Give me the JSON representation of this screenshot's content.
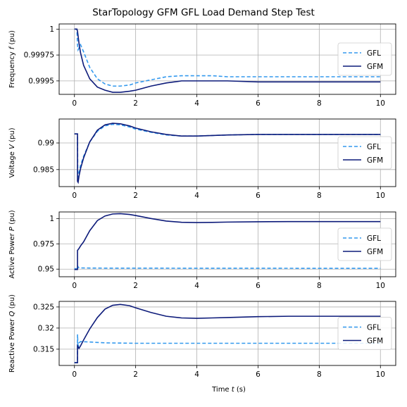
{
  "figure": {
    "title": "StarTopology GFM GFL Load Demand Step Test",
    "xlabel": "Time t (s)"
  },
  "colors": {
    "GFL": "#3399ee",
    "GFM": "#0d1b7a",
    "grid": "#b0b0b0"
  },
  "chart_data": [
    {
      "type": "line",
      "ylabel": "Frequency f (pu)",
      "xlim": [
        -0.5,
        10.5
      ],
      "ylim": [
        0.99937,
        1.00005
      ],
      "xticks": [
        0,
        2,
        4,
        6,
        8,
        10
      ],
      "yticks": [
        0.9995,
        0.99975,
        1
      ],
      "yticklabels": [
        "0.9995",
        "0.99975",
        "1"
      ],
      "grid": true,
      "legend": "right",
      "series": [
        {
          "name": "GFL",
          "style": "dashed",
          "x": [
            0,
            0.08,
            0.1,
            0.12,
            0.2,
            0.3,
            0.5,
            0.75,
            1.0,
            1.25,
            1.5,
            1.8,
            2.0,
            2.5,
            3.0,
            3.5,
            4.0,
            4.5,
            5.0,
            6.0,
            7.0,
            8.0,
            9.0,
            10.0
          ],
          "y": [
            1.0,
            1.0,
            0.99985,
            0.9998,
            0.99985,
            0.99978,
            0.99963,
            0.99952,
            0.99947,
            0.99945,
            0.99945,
            0.99946,
            0.99948,
            0.99951,
            0.99954,
            0.99955,
            0.99955,
            0.99955,
            0.99954,
            0.99954,
            0.99954,
            0.99954,
            0.99954,
            0.99954
          ]
        },
        {
          "name": "GFM",
          "style": "solid",
          "x": [
            0,
            0.08,
            0.1,
            0.15,
            0.2,
            0.3,
            0.5,
            0.75,
            1.0,
            1.25,
            1.5,
            1.8,
            2.0,
            2.5,
            3.0,
            3.5,
            4.0,
            4.5,
            5.0,
            6.0,
            7.0,
            8.0,
            9.0,
            10.0
          ],
          "y": [
            1.0,
            1.0,
            0.99998,
            0.99986,
            0.99977,
            0.99965,
            0.99952,
            0.99944,
            0.99941,
            0.99939,
            0.99939,
            0.9994,
            0.99941,
            0.99945,
            0.99948,
            0.9995,
            0.9995,
            0.9995,
            0.9995,
            0.99949,
            0.99949,
            0.99949,
            0.99949,
            0.99949
          ]
        }
      ]
    },
    {
      "type": "line",
      "ylabel": "Voltage V (pu)",
      "xlim": [
        -0.5,
        10.5
      ],
      "ylim": [
        0.9818,
        0.9945
      ],
      "xticks": [
        0,
        2,
        4,
        6,
        8,
        10
      ],
      "yticks": [
        0.985,
        0.99
      ],
      "yticklabels": [
        "0.985",
        "0.99"
      ],
      "grid": true,
      "legend": "right",
      "series": [
        {
          "name": "GFL",
          "style": "dashed",
          "x": [
            0,
            0.1,
            0.11,
            0.15,
            0.2,
            0.3,
            0.5,
            0.75,
            1.0,
            1.25,
            1.5,
            1.8,
            2.0,
            2.5,
            3.0,
            3.5,
            4.0,
            4.5,
            5.0,
            6.0,
            7.0,
            8.0,
            9.0,
            10.0
          ],
          "y": [
            0.9917,
            0.9917,
            0.9835,
            0.9845,
            0.9858,
            0.9875,
            0.9902,
            0.9922,
            0.9932,
            0.9935,
            0.9934,
            0.993,
            0.9926,
            0.992,
            0.9915,
            0.9913,
            0.9913,
            0.9914,
            0.9915,
            0.9916,
            0.9916,
            0.9916,
            0.9916,
            0.9916
          ]
        },
        {
          "name": "GFM",
          "style": "solid",
          "x": [
            0,
            0.1,
            0.1,
            0.12,
            0.15,
            0.2,
            0.3,
            0.5,
            0.75,
            1.0,
            1.25,
            1.5,
            1.8,
            2.0,
            2.5,
            3.0,
            3.5,
            4.0,
            4.5,
            5.0,
            6.0,
            7.0,
            8.0,
            9.0,
            10.0
          ],
          "y": [
            0.9917,
            0.9917,
            0.9828,
            0.9826,
            0.9838,
            0.9852,
            0.9872,
            0.9902,
            0.9924,
            0.9934,
            0.9937,
            0.9936,
            0.9932,
            0.9928,
            0.9921,
            0.9916,
            0.9913,
            0.9913,
            0.9914,
            0.9915,
            0.9916,
            0.9916,
            0.9916,
            0.9916,
            0.9916
          ]
        }
      ]
    },
    {
      "type": "line",
      "ylabel": "Active Power P (pu)",
      "xlim": [
        -0.5,
        10.5
      ],
      "ylim": [
        0.9425,
        1.0065
      ],
      "xticks": [
        0,
        2,
        4,
        6,
        8,
        10
      ],
      "yticks": [
        0.95,
        0.975,
        1
      ],
      "yticklabels": [
        "0.95",
        "0.975",
        "1"
      ],
      "grid": true,
      "legend": "right",
      "series": [
        {
          "name": "GFL",
          "style": "dashed",
          "x": [
            0,
            0.1,
            0.1,
            0.13,
            0.2,
            0.5,
            1.0,
            2.0,
            4.0,
            6.0,
            8.0,
            10.0
          ],
          "y": [
            0.9505,
            0.9505,
            0.9535,
            0.9515,
            0.9512,
            0.9511,
            0.951,
            0.951,
            0.9509,
            0.9509,
            0.9508,
            0.9508
          ]
        },
        {
          "name": "GFM",
          "style": "solid",
          "x": [
            0,
            0.1,
            0.1,
            0.15,
            0.2,
            0.3,
            0.5,
            0.75,
            1.0,
            1.25,
            1.5,
            1.8,
            2.0,
            2.5,
            3.0,
            3.5,
            4.0,
            4.5,
            5.0,
            6.0,
            7.0,
            8.0,
            9.0,
            10.0
          ],
          "y": [
            0.9497,
            0.9497,
            0.9685,
            0.9705,
            0.973,
            0.977,
            0.988,
            0.998,
            1.0025,
            1.0045,
            1.0048,
            1.004,
            1.003,
            1.0,
            0.9975,
            0.9963,
            0.996,
            0.9962,
            0.9965,
            0.9968,
            0.997,
            0.997,
            0.997,
            0.997
          ]
        }
      ]
    },
    {
      "type": "line",
      "ylabel": "Reactive Power Q (pu)",
      "xlim": [
        -0.5,
        10.5
      ],
      "ylim": [
        0.31115,
        0.32632
      ],
      "xticks": [
        0,
        2,
        4,
        6,
        8,
        10
      ],
      "yticks": [
        0.315,
        0.32,
        0.325
      ],
      "yticklabels": [
        "0.315",
        "0.32",
        "0.325"
      ],
      "grid": true,
      "legend": "right",
      "series": [
        {
          "name": "GFL",
          "style": "dashed",
          "x": [
            0,
            0.1,
            0.1,
            0.12,
            0.15,
            0.2,
            0.5,
            1.0,
            2.0,
            4.0,
            6.0,
            8.0,
            10.0
          ],
          "y": [
            0.3118,
            0.3118,
            0.3185,
            0.3152,
            0.3165,
            0.3168,
            0.3167,
            0.3165,
            0.3164,
            0.3164,
            0.3164,
            0.3164,
            0.3164
          ]
        },
        {
          "name": "GFM",
          "style": "solid",
          "x": [
            0,
            0.1,
            0.1,
            0.15,
            0.2,
            0.3,
            0.5,
            0.75,
            1.0,
            1.25,
            1.5,
            1.8,
            2.0,
            2.5,
            3.0,
            3.5,
            4.0,
            4.5,
            5.0,
            6.0,
            7.0,
            8.0,
            9.0,
            10.0
          ],
          "y": [
            0.3118,
            0.3118,
            0.3158,
            0.3152,
            0.3158,
            0.3172,
            0.3198,
            0.3225,
            0.3245,
            0.3254,
            0.3256,
            0.3253,
            0.3248,
            0.3237,
            0.3228,
            0.3224,
            0.3223,
            0.3224,
            0.3225,
            0.3227,
            0.3228,
            0.3228,
            0.3228,
            0.3228
          ]
        }
      ]
    }
  ]
}
